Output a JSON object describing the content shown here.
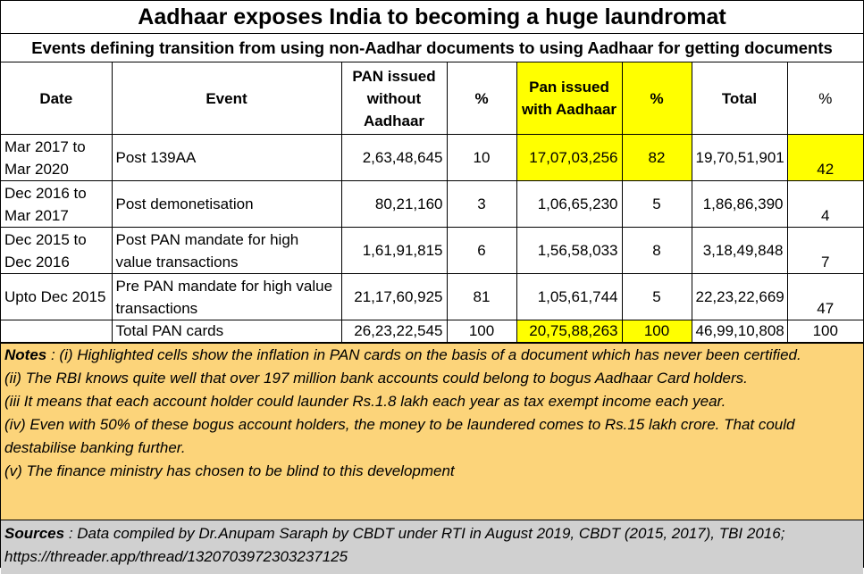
{
  "title": "Aadhaar exposes India to becoming a huge  laundromat",
  "subtitle": "Events defining transition from using non-Aadhar documents to using Aadhaar for getting documents",
  "table": {
    "headers": {
      "date": "Date",
      "event": "Event",
      "pan_without": "PAN issued without Aadhaar",
      "pct1": "%",
      "pan_with": "Pan issued with Aadhaar",
      "pct2": "%",
      "total": "Total",
      "pct3": "%"
    },
    "rows": [
      {
        "date": "Mar 2017 to Mar 2020",
        "event": "Post 139AA",
        "pan_without": "2,63,48,645",
        "pct1": "10",
        "pan_with": "17,07,03,256",
        "pct2": "82",
        "total": "19,70,51,901",
        "pct3": "42"
      },
      {
        "date": "Dec 2016 to Mar 2017",
        "event": "Post demonetisation",
        "pan_without": "80,21,160",
        "pct1": "3",
        "pan_with": "1,06,65,230",
        "pct2": "5",
        "total": "1,86,86,390",
        "pct3": "4"
      },
      {
        "date": "Dec 2015 to Dec 2016",
        "event": "Post PAN mandate for high value transactions",
        "pan_without": "1,61,91,815",
        "pct1": "6",
        "pan_with": "1,56,58,033",
        "pct2": "8",
        "total": "3,18,49,848",
        "pct3": "7"
      },
      {
        "date": "Upto Dec 2015",
        "event": "Pre PAN mandate for high value transactions",
        "pan_without": "21,17,60,925",
        "pct1": "81",
        "pan_with": "1,05,61,744",
        "pct2": "5",
        "total": "22,23,22,669",
        "pct3": "47"
      }
    ],
    "total_row": {
      "date": "",
      "event": "Total PAN cards",
      "pan_without": "26,23,22,545",
      "pct1": "100",
      "pan_with": "20,75,88,263",
      "pct2": "100",
      "total": "46,99,10,808",
      "pct3": "100"
    },
    "highlight_color": "#ffff00"
  },
  "notes": {
    "label": "Notes",
    "lines": [
      " : (i) Highlighted cells show the inflation in PAN cards on the basis of a document which has never been certified.",
      "(ii) The RBI knows quite well that over 197 million bank accounts could belong to bogus Aadhaar Card holders.",
      "(iii It means that each account holder could launder Rs.1.8 lakh each year as tax exempt income each year.",
      "(iv) Even with 50% of these bogus account holders, the money to be laundered comes to Rs.15 lakh crore. That could destabilise banking further.",
      "(v) The finance ministry has chosen to be blind to this development"
    ],
    "background": "#fcd47a"
  },
  "sources": {
    "label": "Sources",
    "text": " : Data compiled by Dr.Anupam Saraph by CBDT under RTI in August 2019, CBDT (2015, 2017), TBI 2016; https://threader.app/thread/1320703972303237125",
    "background": "#d0d0d0"
  }
}
